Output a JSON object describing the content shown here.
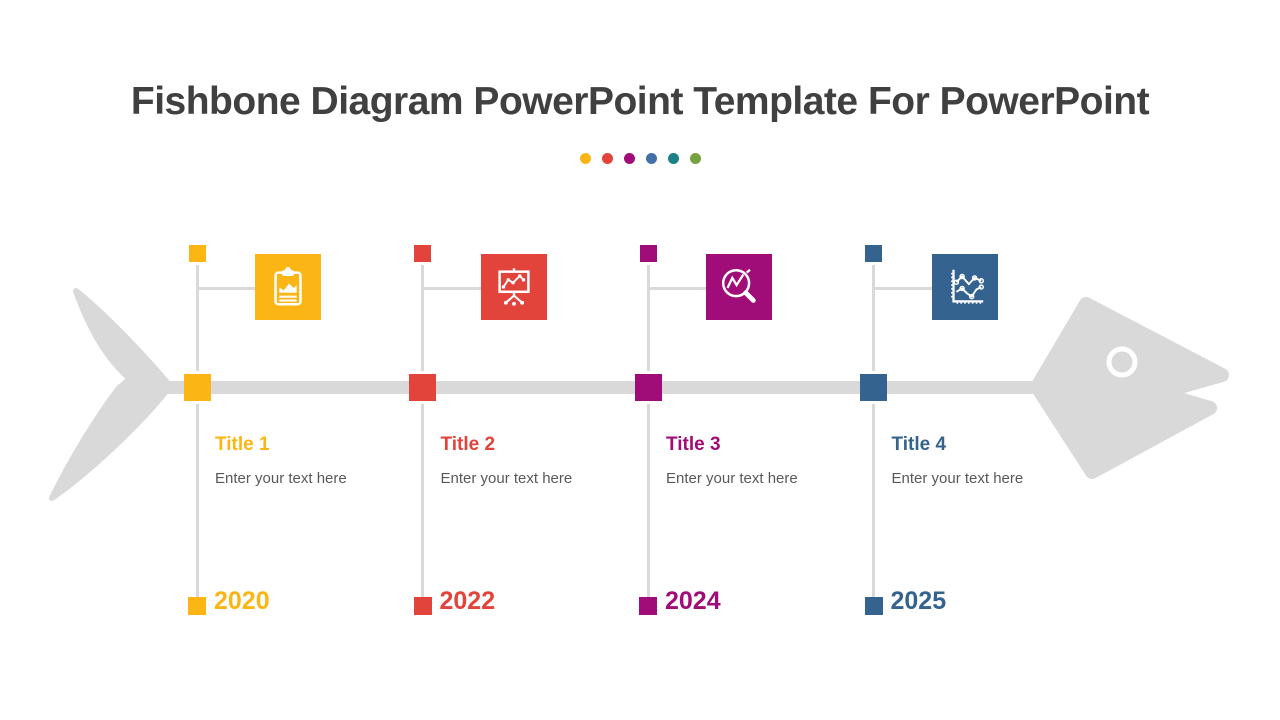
{
  "slide": {
    "title": "Fishbone Diagram PowerPoint Template For PowerPoint",
    "title_color": "#404040",
    "background": "#FFFFFF"
  },
  "decoration_dots": {
    "colors": [
      "#FBB615",
      "#E2443C",
      "#A00D78",
      "#4470A8",
      "#1B8186",
      "#76A23F"
    ]
  },
  "fishbone": {
    "gray": "#D9D9D9",
    "text_gray": "#595959",
    "items": [
      {
        "title": "Title 1",
        "description": "Enter your text here",
        "year": "2020",
        "color": "#FBB615",
        "icon": "clipboard-chart-icon"
      },
      {
        "title": "Title 2",
        "description": "Enter your text here",
        "year": "2022",
        "color": "#E2443C",
        "icon": "presentation-chart-icon"
      },
      {
        "title": "Title 3",
        "description": "Enter your text here",
        "year": "2024",
        "color": "#A00D78",
        "icon": "magnifier-chart-icon"
      },
      {
        "title": "Title 4",
        "description": "Enter your text here",
        "year": "2025",
        "color": "#35638F",
        "icon": "line-chart-icon"
      }
    ]
  }
}
